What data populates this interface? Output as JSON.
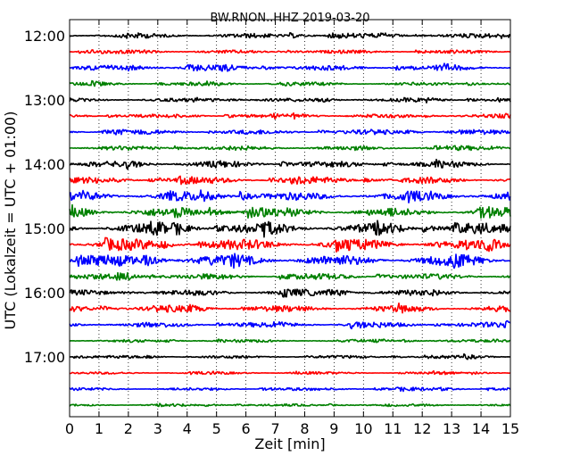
{
  "chart_data": {
    "type": "line",
    "title": "BW.RNON..HHZ 2019-03-20",
    "xlabel": "Zeit  [min]",
    "ylabel": "UTC (Lokalzeit = UTC + 01:00)",
    "xlim": [
      0,
      15
    ],
    "x_ticks": [
      "0",
      "1",
      "2",
      "3",
      "4",
      "5",
      "6",
      "7",
      "8",
      "9",
      "10",
      "11",
      "12",
      "13",
      "14",
      "15"
    ],
    "y_tick_labels": [
      "12:00",
      "13:00",
      "14:00",
      "15:00",
      "16:00",
      "17:00"
    ],
    "grid": "vertical dotted",
    "trace_colors": [
      "#000000",
      "#ff0000",
      "#0000ff",
      "#008000"
    ],
    "traces": [
      {
        "start": "12:00",
        "amplitude": 0.8
      },
      {
        "start": "12:15",
        "amplitude": 0.6
      },
      {
        "start": "12:30",
        "amplitude": 0.9
      },
      {
        "start": "12:45",
        "amplitude": 0.6
      },
      {
        "start": "13:00",
        "amplitude": 0.6
      },
      {
        "start": "13:15",
        "amplitude": 0.7
      },
      {
        "start": "13:30",
        "amplitude": 0.8
      },
      {
        "start": "13:45",
        "amplitude": 0.8
      },
      {
        "start": "14:00",
        "amplitude": 1.0
      },
      {
        "start": "14:15",
        "amplitude": 1.1
      },
      {
        "start": "14:30",
        "amplitude": 1.4
      },
      {
        "start": "14:45",
        "amplitude": 1.5
      },
      {
        "start": "15:00",
        "amplitude": 1.7
      },
      {
        "start": "15:15",
        "amplitude": 1.8
      },
      {
        "start": "15:30",
        "amplitude": 1.9
      },
      {
        "start": "15:45",
        "amplitude": 1.0
      },
      {
        "start": "16:00",
        "amplitude": 1.0
      },
      {
        "start": "16:15",
        "amplitude": 1.1
      },
      {
        "start": "16:30",
        "amplitude": 0.9
      },
      {
        "start": "16:45",
        "amplitude": 0.5
      },
      {
        "start": "17:00",
        "amplitude": 0.5
      },
      {
        "start": "17:15",
        "amplitude": 0.4
      },
      {
        "start": "17:30",
        "amplitude": 0.5
      },
      {
        "start": "17:45",
        "amplitude": 0.4
      }
    ]
  }
}
